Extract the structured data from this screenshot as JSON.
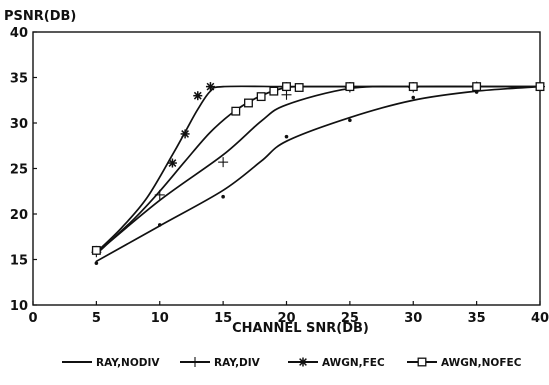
{
  "chart_data": {
    "type": "line",
    "title": "",
    "xlabel": "CHANNEL SNR(DB)",
    "ylabel": "PSNR(DB)",
    "xlim": [
      0,
      40
    ],
    "ylim": [
      10,
      40
    ],
    "xticks": [
      0,
      5,
      10,
      15,
      20,
      25,
      30,
      35,
      40
    ],
    "yticks": [
      10,
      15,
      20,
      25,
      30,
      35,
      40
    ],
    "grid": false,
    "legend_position": "bottom",
    "series": [
      {
        "name": "RAY,NODIV",
        "marker": "dot",
        "curve": [
          [
            5,
            14.8
          ],
          [
            10,
            18.7
          ],
          [
            15,
            22.6
          ],
          [
            18,
            25.8
          ],
          [
            20,
            28.0
          ],
          [
            25,
            30.6
          ],
          [
            30,
            32.5
          ],
          [
            35,
            33.5
          ],
          [
            40,
            34.0
          ]
        ],
        "points": [
          [
            5,
            14.6
          ],
          [
            10,
            18.8
          ],
          [
            15,
            21.9
          ],
          [
            20,
            28.5
          ],
          [
            25,
            30.3
          ],
          [
            30,
            32.8
          ],
          [
            35,
            33.4
          ],
          [
            40,
            34.0
          ]
        ]
      },
      {
        "name": "RAY,DIV",
        "marker": "plus",
        "curve": [
          [
            5,
            15.7
          ],
          [
            10,
            21.5
          ],
          [
            15,
            26.5
          ],
          [
            18,
            30.2
          ],
          [
            20,
            32.0
          ],
          [
            25,
            33.8
          ],
          [
            30,
            34.0
          ],
          [
            35,
            34.0
          ],
          [
            40,
            34.0
          ]
        ],
        "points": [
          [
            5,
            15.8
          ],
          [
            10,
            22.1
          ],
          [
            15,
            25.7
          ],
          [
            20,
            33.1
          ],
          [
            25,
            33.9
          ],
          [
            30,
            33.9
          ],
          [
            35,
            34.0
          ],
          [
            40,
            34.0
          ]
        ]
      },
      {
        "name": "AWGN,FEC",
        "marker": "asterisk",
        "curve": [
          [
            5,
            15.8
          ],
          [
            7,
            18.5
          ],
          [
            9,
            21.8
          ],
          [
            11,
            26.5
          ],
          [
            12,
            29.0
          ],
          [
            13,
            31.5
          ],
          [
            14,
            33.5
          ],
          [
            15,
            34.0
          ],
          [
            20,
            34.0
          ],
          [
            25,
            34.0
          ],
          [
            30,
            34.0
          ],
          [
            35,
            34.0
          ],
          [
            40,
            34.0
          ]
        ],
        "points": [
          [
            5,
            16.0
          ],
          [
            11,
            25.6
          ],
          [
            12,
            28.8
          ],
          [
            13,
            33.0
          ],
          [
            14,
            34.0
          ],
          [
            20,
            34.0
          ],
          [
            25,
            34.0
          ],
          [
            30,
            34.0
          ],
          [
            35,
            34.0
          ],
          [
            40,
            34.0
          ]
        ]
      },
      {
        "name": "AWGN,NOFEC",
        "marker": "square",
        "curve": [
          [
            5,
            15.6
          ],
          [
            8,
            19.5
          ],
          [
            10,
            22.5
          ],
          [
            12,
            25.8
          ],
          [
            14,
            29.0
          ],
          [
            16,
            31.4
          ],
          [
            18,
            33.0
          ],
          [
            20,
            33.9
          ],
          [
            22,
            34.0
          ],
          [
            25,
            34.0
          ],
          [
            30,
            34.0
          ],
          [
            35,
            34.0
          ],
          [
            40,
            34.0
          ]
        ],
        "points": [
          [
            5,
            16.0
          ],
          [
            16,
            31.3
          ],
          [
            17,
            32.2
          ],
          [
            18,
            32.9
          ],
          [
            19,
            33.5
          ],
          [
            20,
            34.0
          ],
          [
            21,
            33.9
          ],
          [
            25,
            34.0
          ],
          [
            30,
            34.0
          ],
          [
            35,
            34.0
          ],
          [
            40,
            34.0
          ]
        ]
      }
    ]
  },
  "colors": {
    "ink": "#111111",
    "background": "#ffffff"
  }
}
